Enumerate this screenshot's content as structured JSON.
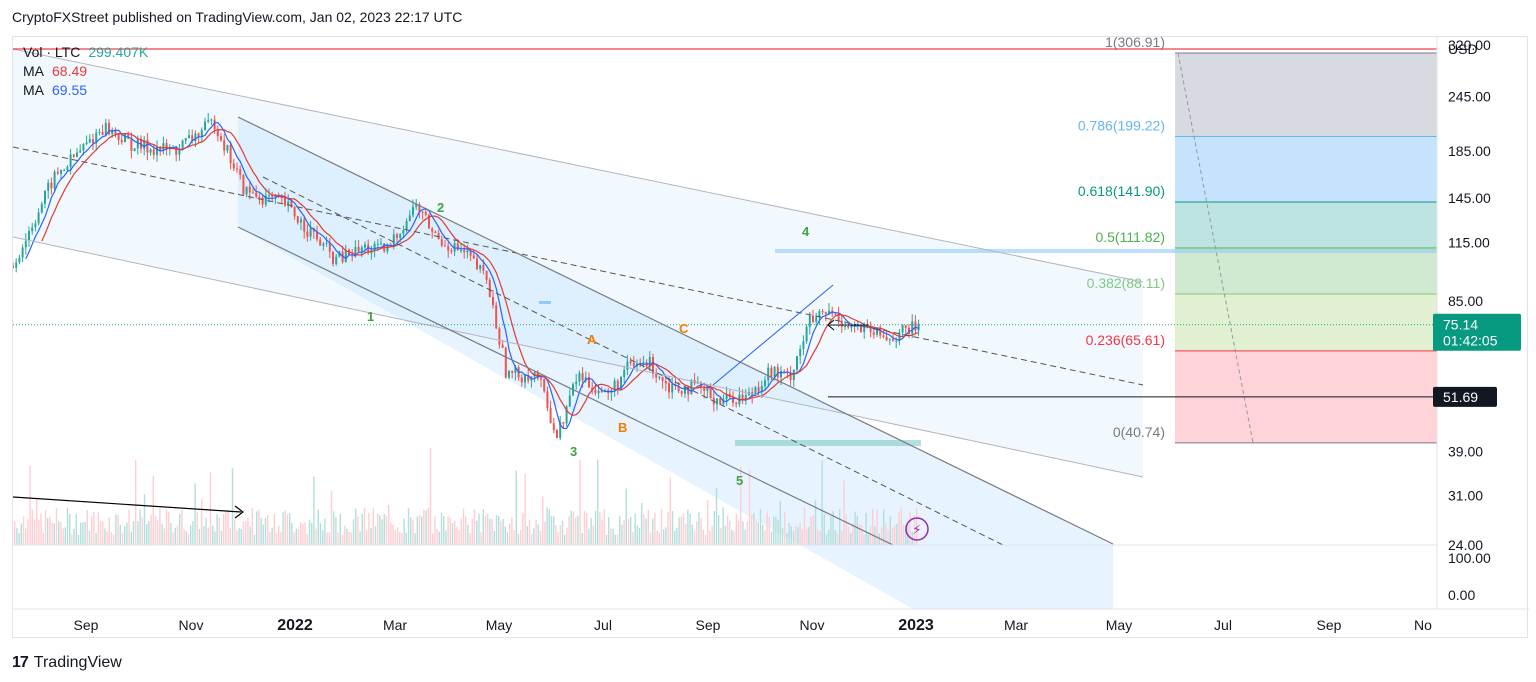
{
  "header": {
    "text": "CryptoFXStreet published on TradingView.com, Jan 02, 2023 22:17 UTC"
  },
  "footer": {
    "logo": "17",
    "brand": "TradingView"
  },
  "legend": [
    {
      "label": "Vol · LTC",
      "value": "299.407K",
      "color": "#26a69a"
    },
    {
      "label": "MA",
      "value": "68.49",
      "color": "#e53935"
    },
    {
      "label": "MA",
      "value": "69.55",
      "color": "#2962ff"
    }
  ],
  "price_axis": {
    "currency": "USD",
    "ticks": [
      "320.00",
      "245.00",
      "185.00",
      "145.00",
      "115.00",
      "85.00",
      "39.00",
      "31.00",
      "24.00"
    ],
    "volume_ticks": [
      "100.00",
      "0.00"
    ],
    "last_price": "75.14",
    "countdown": "01:42:05",
    "level_label": "51.69"
  },
  "time_axis": {
    "ticks": [
      "Sep",
      "Nov",
      "2022",
      "Mar",
      "May",
      "Jul",
      "Sep",
      "Nov",
      "2023",
      "Mar",
      "May",
      "Jul",
      "Sep",
      "No"
    ],
    "bold": [
      "2022",
      "2023"
    ]
  },
  "fib_levels": [
    {
      "label": "1(306.91)",
      "color": "#787b86"
    },
    {
      "label": "0.786(199.22)",
      "color": "#64b5f6"
    },
    {
      "label": "0.618(141.90)",
      "color": "#089981"
    },
    {
      "label": "0.5(111.82)",
      "color": "#4caf50"
    },
    {
      "label": "0.382(88.11)",
      "color": "#81c784"
    },
    {
      "label": "0.236(65.61)",
      "color": "#f23645"
    },
    {
      "label": "0(40.74)",
      "color": "#787b86"
    }
  ],
  "wave_labels": {
    "green": [
      "1",
      "2",
      "3",
      "4",
      "5"
    ],
    "orange": [
      "A",
      "B",
      "C"
    ]
  },
  "chart_data": {
    "type": "candlestick",
    "symbol": "LTC",
    "scale": "log",
    "ylim": [
      24,
      320
    ],
    "x_range": [
      "Aug 2021",
      "Nov 2023"
    ],
    "price_path": [
      [
        0,
        102
      ],
      [
        0.04,
        160
      ],
      [
        0.09,
        210
      ],
      [
        0.12,
        190
      ],
      [
        0.16,
        185
      ],
      [
        0.2,
        215
      ],
      [
        0.23,
        150
      ],
      [
        0.27,
        140
      ],
      [
        0.29,
        125
      ],
      [
        0.32,
        105
      ],
      [
        0.35,
        112
      ],
      [
        0.37,
        110
      ],
      [
        0.4,
        140
      ],
      [
        0.42,
        118
      ],
      [
        0.45,
        108
      ],
      [
        0.47,
        95
      ],
      [
        0.49,
        58
      ],
      [
        0.52,
        58
      ],
      [
        0.54,
        42
      ],
      [
        0.56,
        58
      ],
      [
        0.59,
        52
      ],
      [
        0.61,
        60
      ],
      [
        0.63,
        62
      ],
      [
        0.65,
        55
      ],
      [
        0.68,
        54
      ],
      [
        0.7,
        51
      ],
      [
        0.73,
        52
      ],
      [
        0.75,
        59
      ],
      [
        0.77,
        57
      ],
      [
        0.79,
        76
      ],
      [
        0.81,
        80
      ],
      [
        0.83,
        75
      ],
      [
        0.85,
        72
      ],
      [
        0.87,
        70
      ],
      [
        0.9,
        75.14
      ]
    ],
    "last_price": 75.14,
    "fib_retracement": [
      {
        "ratio": 1,
        "price": 306.91
      },
      {
        "ratio": 0.786,
        "price": 199.22
      },
      {
        "ratio": 0.618,
        "price": 141.9
      },
      {
        "ratio": 0.5,
        "price": 111.82
      },
      {
        "ratio": 0.382,
        "price": 88.11
      },
      {
        "ratio": 0.236,
        "price": 65.61
      },
      {
        "ratio": 0,
        "price": 40.74
      }
    ],
    "horizontal_levels": [
      51.69
    ],
    "volume_ma": 299.407,
    "ma_values": [
      68.49,
      69.55
    ]
  }
}
